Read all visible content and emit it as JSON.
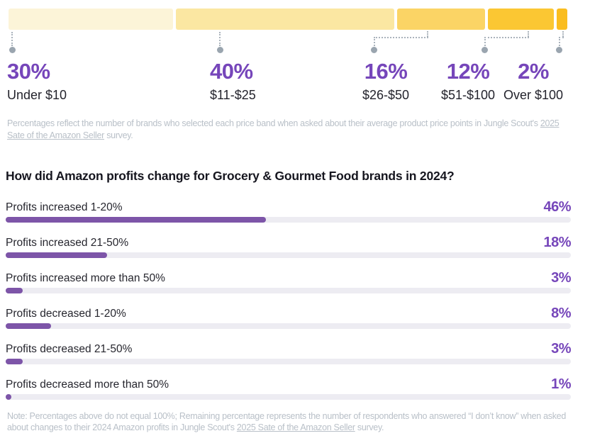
{
  "colors": {
    "accent_purple_text": "#7646ba",
    "bar_fill_purple": "#7d55a8",
    "bar_track_gray": "#edecf2",
    "caption_gray": "#b9c0c8",
    "connector_gray": "#9aa5af",
    "segment_colors": [
      "#fcf4d8",
      "#fbe7a2",
      "#fbd465",
      "#fbc733",
      "#fabd1f"
    ]
  },
  "price_chart": {
    "segments": [
      {
        "pct": "30%",
        "band": "Under $10",
        "value": 30,
        "color": "#fcf4d8"
      },
      {
        "pct": "40%",
        "band": "$11-$25",
        "value": 40,
        "color": "#fbe7a2"
      },
      {
        "pct": "16%",
        "band": "$26-$50",
        "value": 16,
        "color": "#fbd465"
      },
      {
        "pct": "12%",
        "band": "$51-$100",
        "value": 12,
        "color": "#fbc733"
      },
      {
        "pct": "2%",
        "band": "Over $100",
        "value": 2,
        "color": "#fabd1f"
      }
    ],
    "caption": {
      "before_link": "Percentages reflect the number of brands who selected each price band when asked about their average product price points in Jungle Scout's ",
      "link": "2025 Sate of the Amazon Seller",
      "after_link": " survey."
    }
  },
  "profit_chart": {
    "heading": "How did Amazon profits change for Grocery & Gourmet Food brands in 2024?",
    "rows": [
      {
        "label": "Profits increased 1-20%",
        "pct": "46%",
        "value": 46
      },
      {
        "label": "Profits increased 21-50%",
        "pct": "18%",
        "value": 18
      },
      {
        "label": "Profits increased more than 50%",
        "pct": "3%",
        "value": 3
      },
      {
        "label": "Profits decreased 1-20%",
        "pct": "8%",
        "value": 8
      },
      {
        "label": "Profits decreased 21-50%",
        "pct": "3%",
        "value": 3
      },
      {
        "label": "Profits decreased more than 50%",
        "pct": "1%",
        "value": 1
      }
    ],
    "note": {
      "before_link": "Note: Percentages above do not equal 100%; Remaining percentage represents the number of respondents who answered “I don’t know” when asked about changes to their 2024 Amazon profits in Jungle Scout's ",
      "link": "2025 Sate of the Amazon Seller",
      "after_link": " survey."
    }
  },
  "chart_data": [
    {
      "type": "bar",
      "subtype": "horizontal-stacked-percentage",
      "title": "Average product price points (share of brands per price band)",
      "categories": [
        "Under $10",
        "$11-$25",
        "$26-$50",
        "$51-$100",
        "Over $100"
      ],
      "values": [
        30,
        40,
        16,
        12,
        2
      ],
      "unit": "%",
      "colors": [
        "#fcf4d8",
        "#fbe7a2",
        "#fbd465",
        "#fbc733",
        "#fabd1f"
      ],
      "annotation": "Percentages reflect the number of brands who selected each price band when asked about their average product price points in Jungle Scout's 2025 Sate of the Amazon Seller survey.",
      "legend_position": "below-with-dotted-connectors",
      "grid": false
    },
    {
      "type": "bar",
      "subtype": "horizontal",
      "title": "How did Amazon profits change for Grocery & Gourmet Food brands in 2024?",
      "categories": [
        "Profits increased 1-20%",
        "Profits increased 21-50%",
        "Profits increased more than 50%",
        "Profits decreased 1-20%",
        "Profits decreased 21-50%",
        "Profits decreased more than 50%"
      ],
      "values": [
        46,
        18,
        3,
        8,
        3,
        1
      ],
      "unit": "%",
      "xlim": [
        0,
        100
      ],
      "bar_color": "#7d55a8",
      "track_color": "#edecf2",
      "value_labels": "right-aligned-percent",
      "grid": false,
      "annotation": "Note: Percentages above do not equal 100%; Remaining percentage represents the number of respondents who answered “I don’t know” when asked about changes to their 2024 Amazon profits in Jungle Scout's 2025 Sate of the Amazon Seller survey."
    }
  ]
}
